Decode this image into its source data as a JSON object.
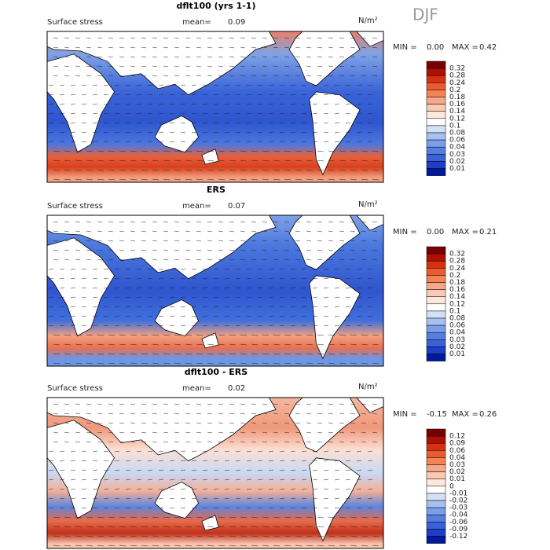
{
  "season": "DJF",
  "panels": [
    {
      "title": "dflt100 (yrs 1-1)",
      "label": "Surface stress",
      "mean_label": "mean=",
      "mean": "0.09",
      "unit": "N/m²",
      "min_label": "MIN =",
      "min": "0.00",
      "max_label": "MAX =",
      "max": "0.42",
      "colorbar": [
        "0.32",
        "0.28",
        "0.24",
        "0.2",
        "0.18",
        "0.16",
        "0.14",
        "0.12",
        "0.1",
        "0.08",
        "0.06",
        "0.04",
        "0.03",
        "0.02",
        "0.01"
      ]
    },
    {
      "title": "ERS",
      "label": "Surface stress",
      "mean_label": "mean=",
      "mean": "0.07",
      "unit": "N/m²",
      "min_label": "MIN =",
      "min": "0.00",
      "max_label": "MAX =",
      "max": "0.21",
      "colorbar": [
        "0.32",
        "0.28",
        "0.24",
        "0.2",
        "0.18",
        "0.16",
        "0.14",
        "0.12",
        "0.1",
        "0.08",
        "0.06",
        "0.04",
        "0.03",
        "0.02",
        "0.01"
      ]
    },
    {
      "title": "dflt100 - ERS",
      "label": "Surface stress",
      "mean_label": "mean=",
      "mean": "0.02",
      "unit": "N/m²",
      "min_label": "MIN =",
      "min": "-0.15",
      "max_label": "MAX =",
      "max": "0.26",
      "colorbar": [
        "0.12",
        "0.09",
        "0.06",
        "0.04",
        "0.03",
        "0.02",
        "0.01",
        "0",
        "-0.01",
        "-0.02",
        "-0.03",
        "-0.04",
        "-0.06",
        "-0.09",
        "-0.12"
      ]
    }
  ]
}
